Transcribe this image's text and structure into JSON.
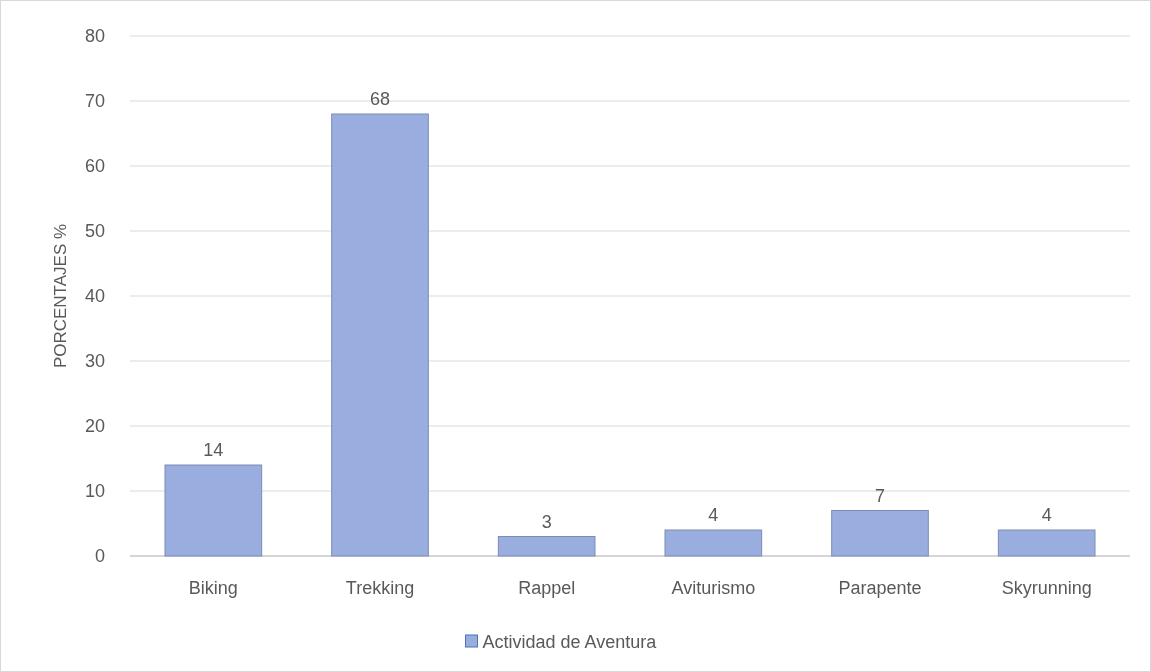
{
  "chart_data": {
    "type": "bar",
    "ylabel": "PORCENTAJES %",
    "categories": [
      "Biking",
      "Trekking",
      "Rappel",
      "Aviturismo",
      "Parapente",
      "Skyrunning"
    ],
    "series": [
      {
        "name": "Actividad de Aventura",
        "color": "#9aaddf",
        "values": [
          14,
          68,
          3,
          4,
          7,
          4
        ]
      }
    ],
    "ylim": [
      0,
      80
    ],
    "yticks": [
      0,
      10,
      20,
      30,
      40,
      50,
      60,
      70,
      80
    ],
    "grid": "y",
    "legend": "bottom",
    "data_labels": true
  }
}
